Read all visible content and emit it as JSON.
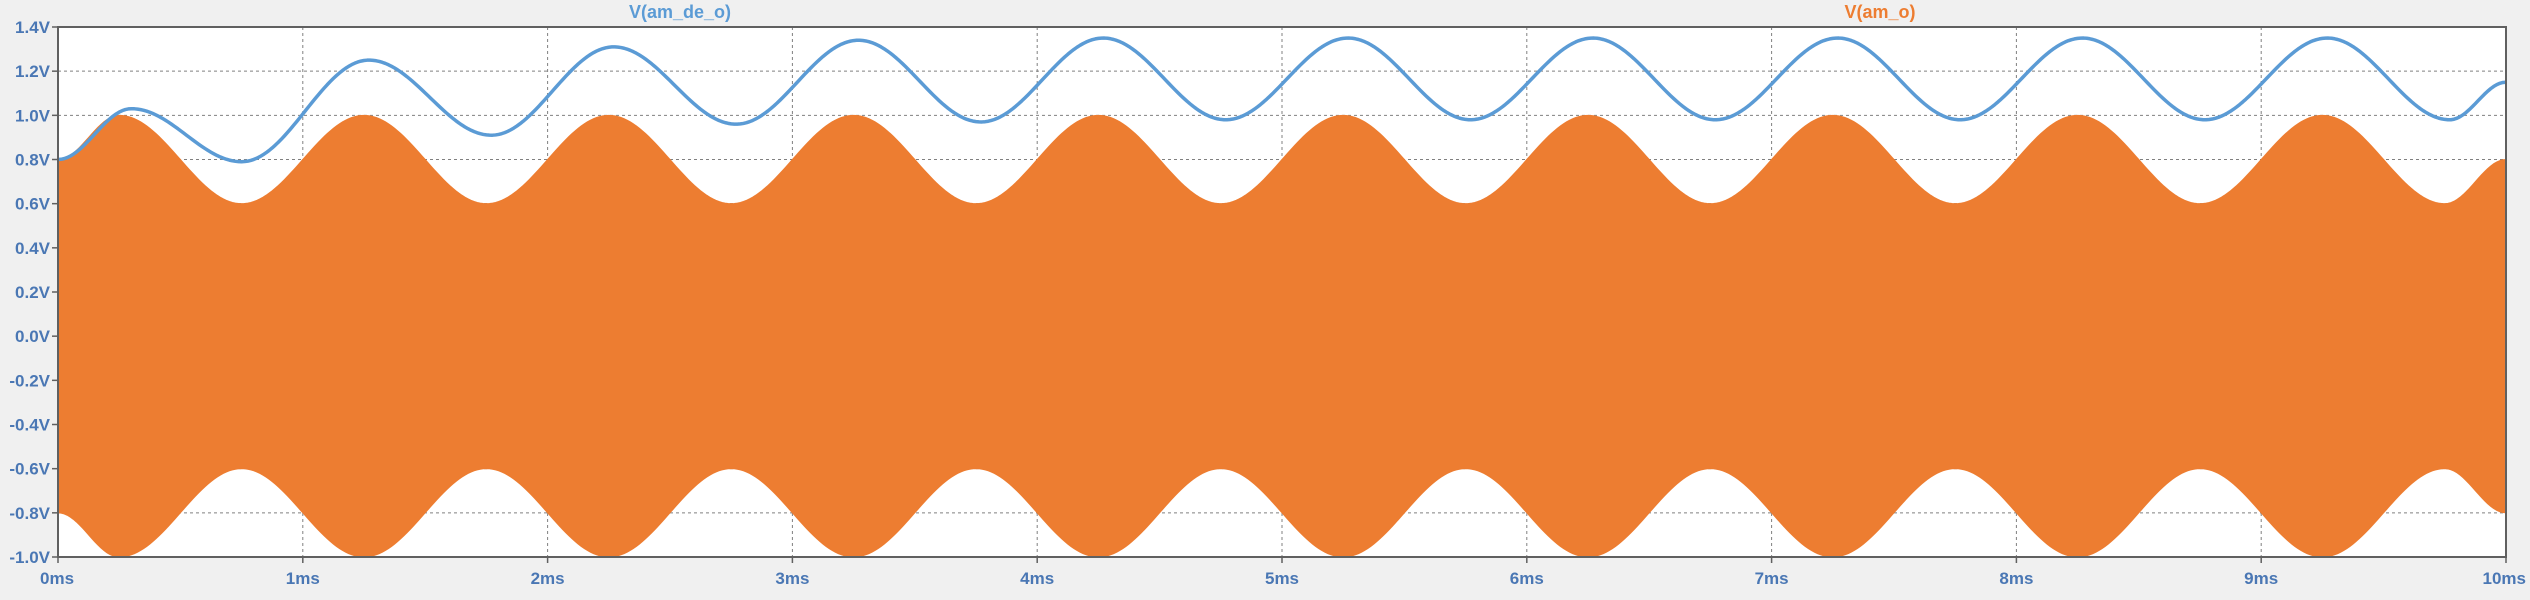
{
  "chart_data": {
    "type": "line",
    "x_axis": {
      "min": 0,
      "max": 10,
      "unit": "ms",
      "ticks": [
        0,
        1,
        2,
        3,
        4,
        5,
        6,
        7,
        8,
        9,
        10
      ],
      "tick_labels": [
        "0ms",
        "1ms",
        "2ms",
        "3ms",
        "4ms",
        "5ms",
        "6ms",
        "7ms",
        "8ms",
        "9ms",
        "10ms"
      ]
    },
    "y_axis": {
      "min": -1.0,
      "max": 1.4,
      "unit": "V",
      "ticks": [
        -1.0,
        -0.8,
        -0.6,
        -0.4,
        -0.2,
        0.0,
        0.2,
        0.4,
        0.6,
        0.8,
        1.0,
        1.2,
        1.4
      ],
      "tick_labels": [
        "-1.0V",
        "-0.8V",
        "-0.6V",
        "-0.4V",
        "-0.2V",
        "0.0V",
        "0.2V",
        "0.4V",
        "0.6V",
        "0.8V",
        "1.0V",
        "1.2V",
        "1.4V"
      ]
    },
    "grid": true,
    "colors": {
      "background": "#f0f0f0",
      "plot_background": "#ffffff",
      "grid": "#808080",
      "axis_text": "#4a77b4"
    },
    "series": [
      {
        "name": "V(am_o)",
        "kind": "am-carrier-envelope",
        "color": "#ed7d31",
        "envelope": {
          "description": "carrier fills between ± envelope",
          "x": [
            0,
            0.25,
            0.75,
            1.25,
            1.75,
            2.25,
            2.75,
            3.25,
            3.75,
            4.25,
            4.75,
            5.25,
            5.75,
            6.25,
            6.75,
            7.25,
            7.75,
            8.25,
            8.75,
            9.25,
            9.75,
            10
          ],
          "y": [
            0.8,
            1.0,
            0.6,
            1.0,
            0.6,
            1.0,
            0.6,
            1.0,
            0.6,
            1.0,
            0.6,
            1.0,
            0.6,
            1.0,
            0.6,
            1.0,
            0.6,
            1.0,
            0.6,
            1.0,
            0.6,
            0.8
          ]
        }
      },
      {
        "name": "V(am_de_o)",
        "kind": "line",
        "color": "#5b9bd5",
        "x": [
          0,
          0.3,
          0.75,
          1.27,
          1.77,
          2.27,
          2.77,
          3.27,
          3.77,
          4.27,
          4.77,
          5.27,
          5.77,
          6.27,
          6.77,
          7.27,
          7.77,
          8.27,
          8.77,
          9.27,
          9.77,
          10
        ],
        "y": [
          0.8,
          1.03,
          0.79,
          1.25,
          0.91,
          1.31,
          0.96,
          1.34,
          0.97,
          1.35,
          0.98,
          1.35,
          0.98,
          1.35,
          0.98,
          1.35,
          0.98,
          1.35,
          0.98,
          1.35,
          0.98,
          1.15
        ]
      }
    ]
  }
}
